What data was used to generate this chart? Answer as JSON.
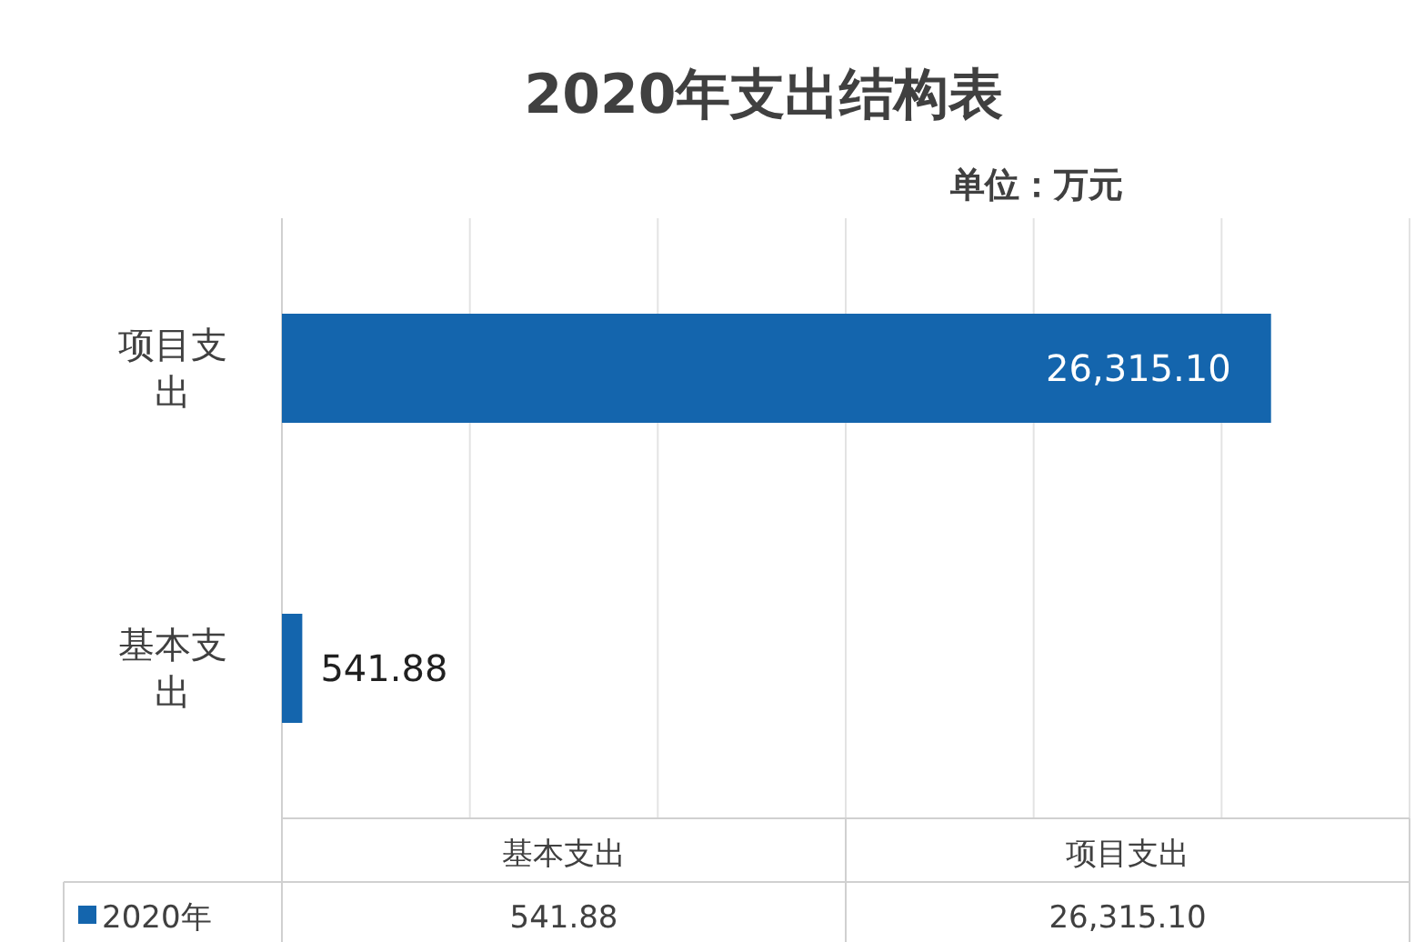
{
  "chart_data": {
    "type": "bar",
    "orientation": "horizontal",
    "title": "2020年支出结构表",
    "annotations": [
      "单位：万元"
    ],
    "categories": [
      "项目支出",
      "基本支出"
    ],
    "series": [
      {
        "name": "2020年",
        "color": "#1465ad",
        "values": [
          26315.1,
          541.88
        ],
        "value_labels": [
          "26,315.10",
          "541.88"
        ]
      }
    ],
    "xlim": [
      0,
      30000
    ],
    "xticks": [
      {
        "value": 0,
        "label": null
      },
      {
        "value": 5000,
        "label": null
      },
      {
        "value": 10000,
        "label": null
      },
      {
        "value": 15000,
        "label": null
      },
      {
        "value": 20000,
        "label": null
      },
      {
        "value": 25000,
        "label": null
      },
      {
        "value": 30000,
        "label": null
      }
    ],
    "grid": "x",
    "legend": "bottom left"
  }
}
